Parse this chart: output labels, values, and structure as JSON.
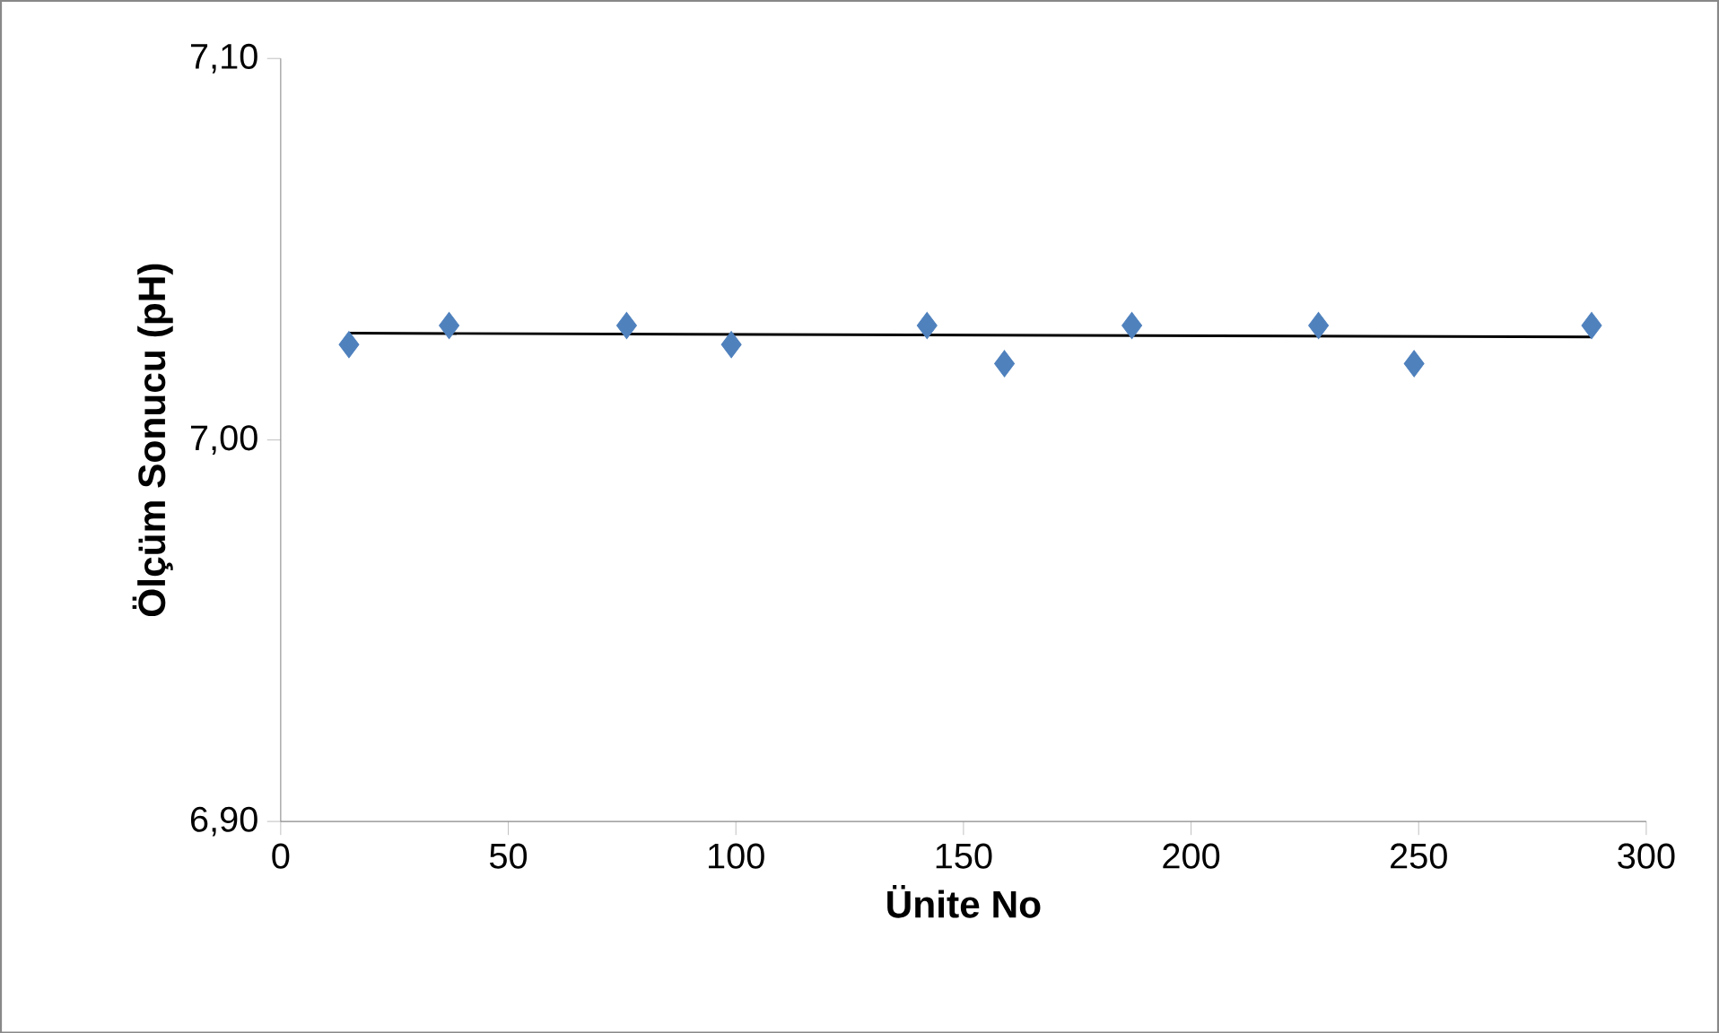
{
  "chart_data": {
    "type": "scatter",
    "xlabel": "Ünite No",
    "ylabel": "Ölçüm Sonucu (pH)",
    "xlim": [
      0,
      300
    ],
    "xticks": [
      0,
      50,
      100,
      150,
      200,
      250,
      300
    ],
    "ylim": [
      6.9,
      7.1
    ],
    "yticks": [
      {
        "value": 6.9,
        "label": "6,90"
      },
      {
        "value": 7.0,
        "label": "7,00"
      },
      {
        "value": 7.1,
        "label": "7,10"
      }
    ],
    "grid": false,
    "marker": "diamond",
    "series": [
      {
        "color": "#4f81bd",
        "x": [
          15,
          37,
          76,
          99,
          142,
          159,
          187,
          228,
          249,
          288
        ],
        "values": [
          7.025,
          7.03,
          7.03,
          7.025,
          7.03,
          7.02,
          7.03,
          7.03,
          7.02,
          7.03
        ]
      },
      {
        "type": "line",
        "color": "#000000",
        "marker": "none",
        "x": [
          15,
          288
        ],
        "values": [
          7.028,
          7.027
        ]
      }
    ]
  }
}
